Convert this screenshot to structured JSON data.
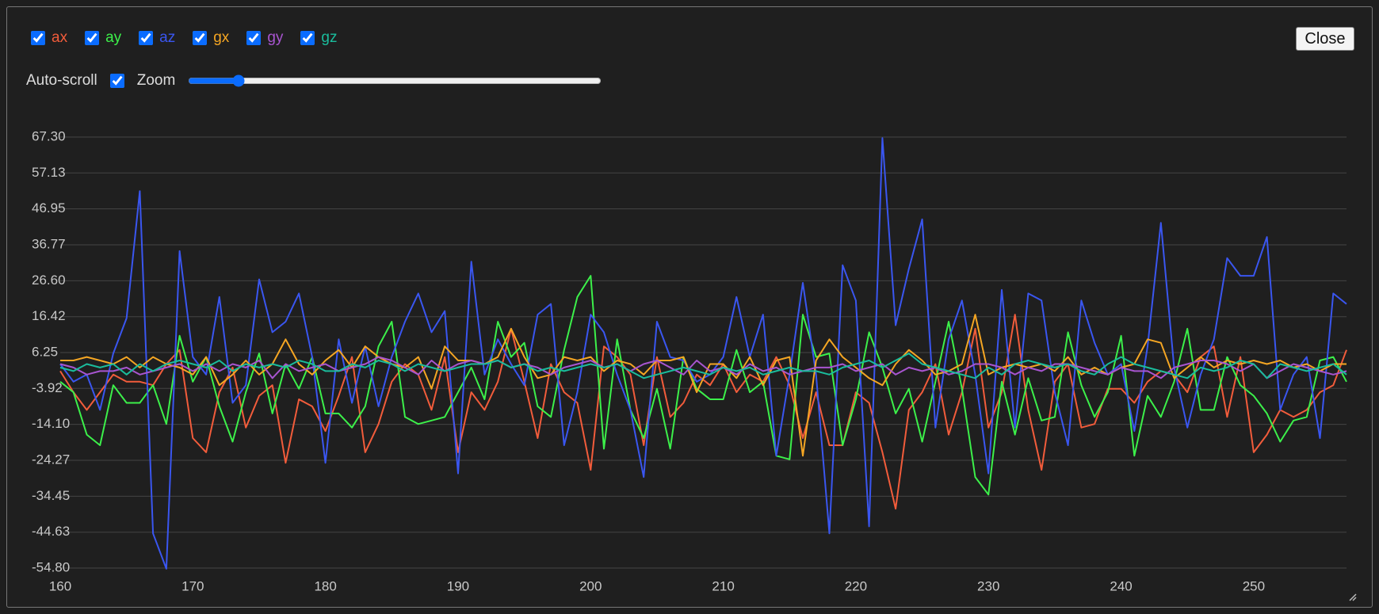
{
  "controls": {
    "autoscroll_label": "Auto-scroll",
    "zoom_label": "Zoom",
    "close_button": "Close"
  },
  "chart_data": {
    "type": "line",
    "x": [
      160,
      161,
      162,
      163,
      164,
      165,
      166,
      167,
      168,
      169,
      170,
      171,
      172,
      173,
      174,
      175,
      176,
      177,
      178,
      179,
      180,
      181,
      182,
      183,
      184,
      185,
      186,
      187,
      188,
      189,
      190,
      191,
      192,
      193,
      194,
      195,
      196,
      197,
      198,
      199,
      200,
      201,
      202,
      203,
      204,
      205,
      206,
      207,
      208,
      209,
      210,
      211,
      212,
      213,
      214,
      215,
      216,
      217,
      218,
      219,
      220,
      221,
      222,
      223,
      224,
      225,
      226,
      227,
      228,
      229,
      230,
      231,
      232,
      233,
      234,
      235,
      236,
      237,
      238,
      239,
      240,
      241,
      242,
      243,
      244,
      245,
      246,
      247,
      248,
      249,
      250,
      251,
      252,
      253,
      254,
      255,
      256,
      257
    ],
    "xlim": [
      160,
      257
    ],
    "xticks": [
      160,
      170,
      180,
      190,
      200,
      210,
      220,
      230,
      240,
      250
    ],
    "ylim": [
      -54.8,
      67.3
    ],
    "yticks": [
      {
        "value": 67.3,
        "label": "67.30"
      },
      57.13,
      46.95,
      36.77,
      {
        "value": 26.6,
        "label": "26.60"
      },
      16.42,
      6.25,
      -3.92,
      {
        "value": -14.1,
        "label": "-14.10"
      },
      -24.27,
      -34.45,
      -44.63,
      {
        "value": -54.8,
        "label": "-54.80"
      }
    ],
    "grid": true,
    "series": [
      {
        "name": "ax",
        "color": "#f25c3b",
        "values": [
          1,
          -5,
          -10,
          -5,
          0,
          -2,
          -2,
          -3,
          3,
          7,
          -18,
          -22,
          -5,
          2,
          -15,
          -6,
          -3,
          -25,
          -7,
          -9,
          -16,
          -6,
          5,
          -22,
          -14,
          -2,
          3,
          0,
          -10,
          5,
          -22,
          -5,
          -10,
          -2,
          13,
          -2,
          -18,
          3,
          -5,
          -8,
          -27,
          8,
          5,
          0,
          -20,
          5,
          -12,
          -8,
          0,
          -3,
          3,
          -5,
          0,
          -2,
          5,
          -3,
          -18,
          -5,
          -20,
          -20,
          -5,
          -8,
          -22,
          -38,
          -10,
          -5,
          3,
          -17,
          -5,
          13,
          -15,
          -5,
          17,
          -10,
          -27,
          -2,
          3,
          -15,
          -14,
          -4,
          -4,
          -8,
          -2,
          1,
          0,
          -5,
          5,
          8,
          -12,
          5,
          -22,
          -17,
          -10,
          -12,
          -10,
          -5,
          -3,
          7
        ]
      },
      {
        "name": "ay",
        "color": "#3cf04a",
        "values": [
          -2,
          -5,
          -17,
          -20,
          -3,
          -8,
          -8,
          -3,
          -14,
          11,
          -2,
          5,
          -9,
          -19,
          -5,
          6,
          -11,
          3,
          -4,
          5,
          -11,
          -11,
          -15,
          -9,
          8,
          15,
          -12,
          -14,
          -13,
          -12,
          -5,
          2,
          -7,
          15,
          5,
          9,
          -9,
          -12,
          7,
          22,
          28,
          -21,
          10,
          -10,
          -18,
          -4,
          -21,
          5,
          -4,
          -7,
          -7,
          7,
          -5,
          -2,
          -23,
          -24,
          17,
          5,
          6,
          -20,
          -7,
          12,
          2,
          -11,
          -4,
          -19,
          -2,
          15,
          -4,
          -29,
          -34,
          -2,
          -17,
          -1,
          -13,
          -12,
          12,
          -3,
          -12,
          -5,
          11,
          -23,
          -6,
          -12,
          -2,
          13,
          -10,
          -10,
          5,
          -3,
          -6,
          -11,
          -19,
          -13,
          -12,
          4,
          5,
          -2
        ]
      },
      {
        "name": "az",
        "color": "#3a56f0",
        "values": [
          3,
          -2,
          0,
          -10,
          6,
          16,
          52,
          -45,
          -55,
          35,
          5,
          0,
          22,
          -8,
          -3,
          27,
          12,
          15,
          23,
          5,
          -25,
          10,
          -8,
          8,
          -9,
          5,
          15,
          23,
          12,
          18,
          -28,
          32,
          0,
          10,
          3,
          -3,
          17,
          20,
          -20,
          -5,
          17,
          12,
          0,
          -10,
          -29,
          15,
          5,
          4,
          -2,
          0,
          5,
          22,
          5,
          17,
          -23,
          0,
          26,
          0,
          -45,
          31,
          21,
          -43,
          67,
          14,
          30,
          44,
          -15,
          10,
          21,
          0,
          -28,
          24,
          -15,
          23,
          21,
          -5,
          -20,
          21,
          9,
          0,
          3,
          -16,
          8,
          43,
          2,
          -15,
          0,
          10,
          33,
          28,
          28,
          39,
          -10,
          0,
          5,
          -18,
          23,
          20
        ]
      },
      {
        "name": "gx",
        "color": "#f5a623",
        "values": [
          4,
          4,
          5,
          4,
          3,
          5,
          2,
          5,
          3,
          2,
          0,
          5,
          -3,
          0,
          4,
          0,
          3,
          10,
          3,
          0,
          4,
          7,
          2,
          8,
          5,
          3,
          2,
          5,
          -4,
          8,
          4,
          4,
          3,
          5,
          13,
          5,
          -1,
          0,
          5,
          4,
          5,
          1,
          4,
          3,
          0,
          4,
          4,
          5,
          -5,
          3,
          3,
          -1,
          5,
          -3,
          4,
          5,
          -23,
          4,
          10,
          5,
          2,
          -1,
          -3,
          3,
          7,
          4,
          0,
          1,
          3,
          17,
          0,
          2,
          3,
          2,
          3,
          1,
          5,
          0,
          2,
          0,
          2,
          3,
          10,
          9,
          -1,
          2,
          5,
          2,
          4,
          3,
          4,
          3,
          4,
          2,
          3,
          1,
          3,
          3
        ]
      },
      {
        "name": "gy",
        "color": "#a855d0",
        "values": [
          3,
          2,
          0,
          1,
          1,
          2,
          0,
          1,
          2,
          3,
          1,
          3,
          1,
          3,
          2,
          4,
          -1,
          3,
          1,
          2,
          3,
          1,
          2,
          3,
          5,
          4,
          2,
          0,
          4,
          1,
          3,
          4,
          3,
          4,
          2,
          3,
          2,
          0,
          2,
          3,
          4,
          2,
          3,
          1,
          3,
          4,
          2,
          0,
          4,
          1,
          2,
          0,
          3,
          1,
          2,
          0,
          1,
          2,
          2,
          3,
          1,
          2,
          3,
          0,
          2,
          1,
          2,
          0,
          1,
          3,
          3,
          2,
          0,
          2,
          1,
          3,
          3,
          2,
          1,
          0,
          2,
          1,
          1,
          -1,
          2,
          3,
          4,
          4,
          3,
          1,
          3,
          -1,
          1,
          3,
          2,
          1,
          0,
          1
        ]
      },
      {
        "name": "gz",
        "color": "#1abc9c",
        "values": [
          2,
          1,
          3,
          2,
          3,
          0,
          3,
          1,
          3,
          4,
          3,
          2,
          4,
          1,
          3,
          2,
          3,
          2,
          4,
          3,
          1,
          1,
          3,
          2,
          4,
          3,
          1,
          3,
          2,
          1,
          2,
          3,
          3,
          4,
          2,
          3,
          1,
          2,
          1,
          2,
          3,
          2,
          3,
          1,
          -1,
          0,
          1,
          2,
          1,
          0,
          2,
          1,
          2,
          0,
          1,
          2,
          1,
          1,
          0,
          2,
          3,
          4,
          2,
          4,
          6,
          3,
          2,
          1,
          0,
          -1,
          2,
          0,
          3,
          4,
          3,
          2,
          3,
          1,
          0,
          3,
          5,
          3,
          2,
          1,
          0,
          -1,
          2,
          1,
          2,
          4,
          3,
          -1,
          3,
          2,
          1,
          2,
          3,
          0
        ]
      }
    ]
  }
}
